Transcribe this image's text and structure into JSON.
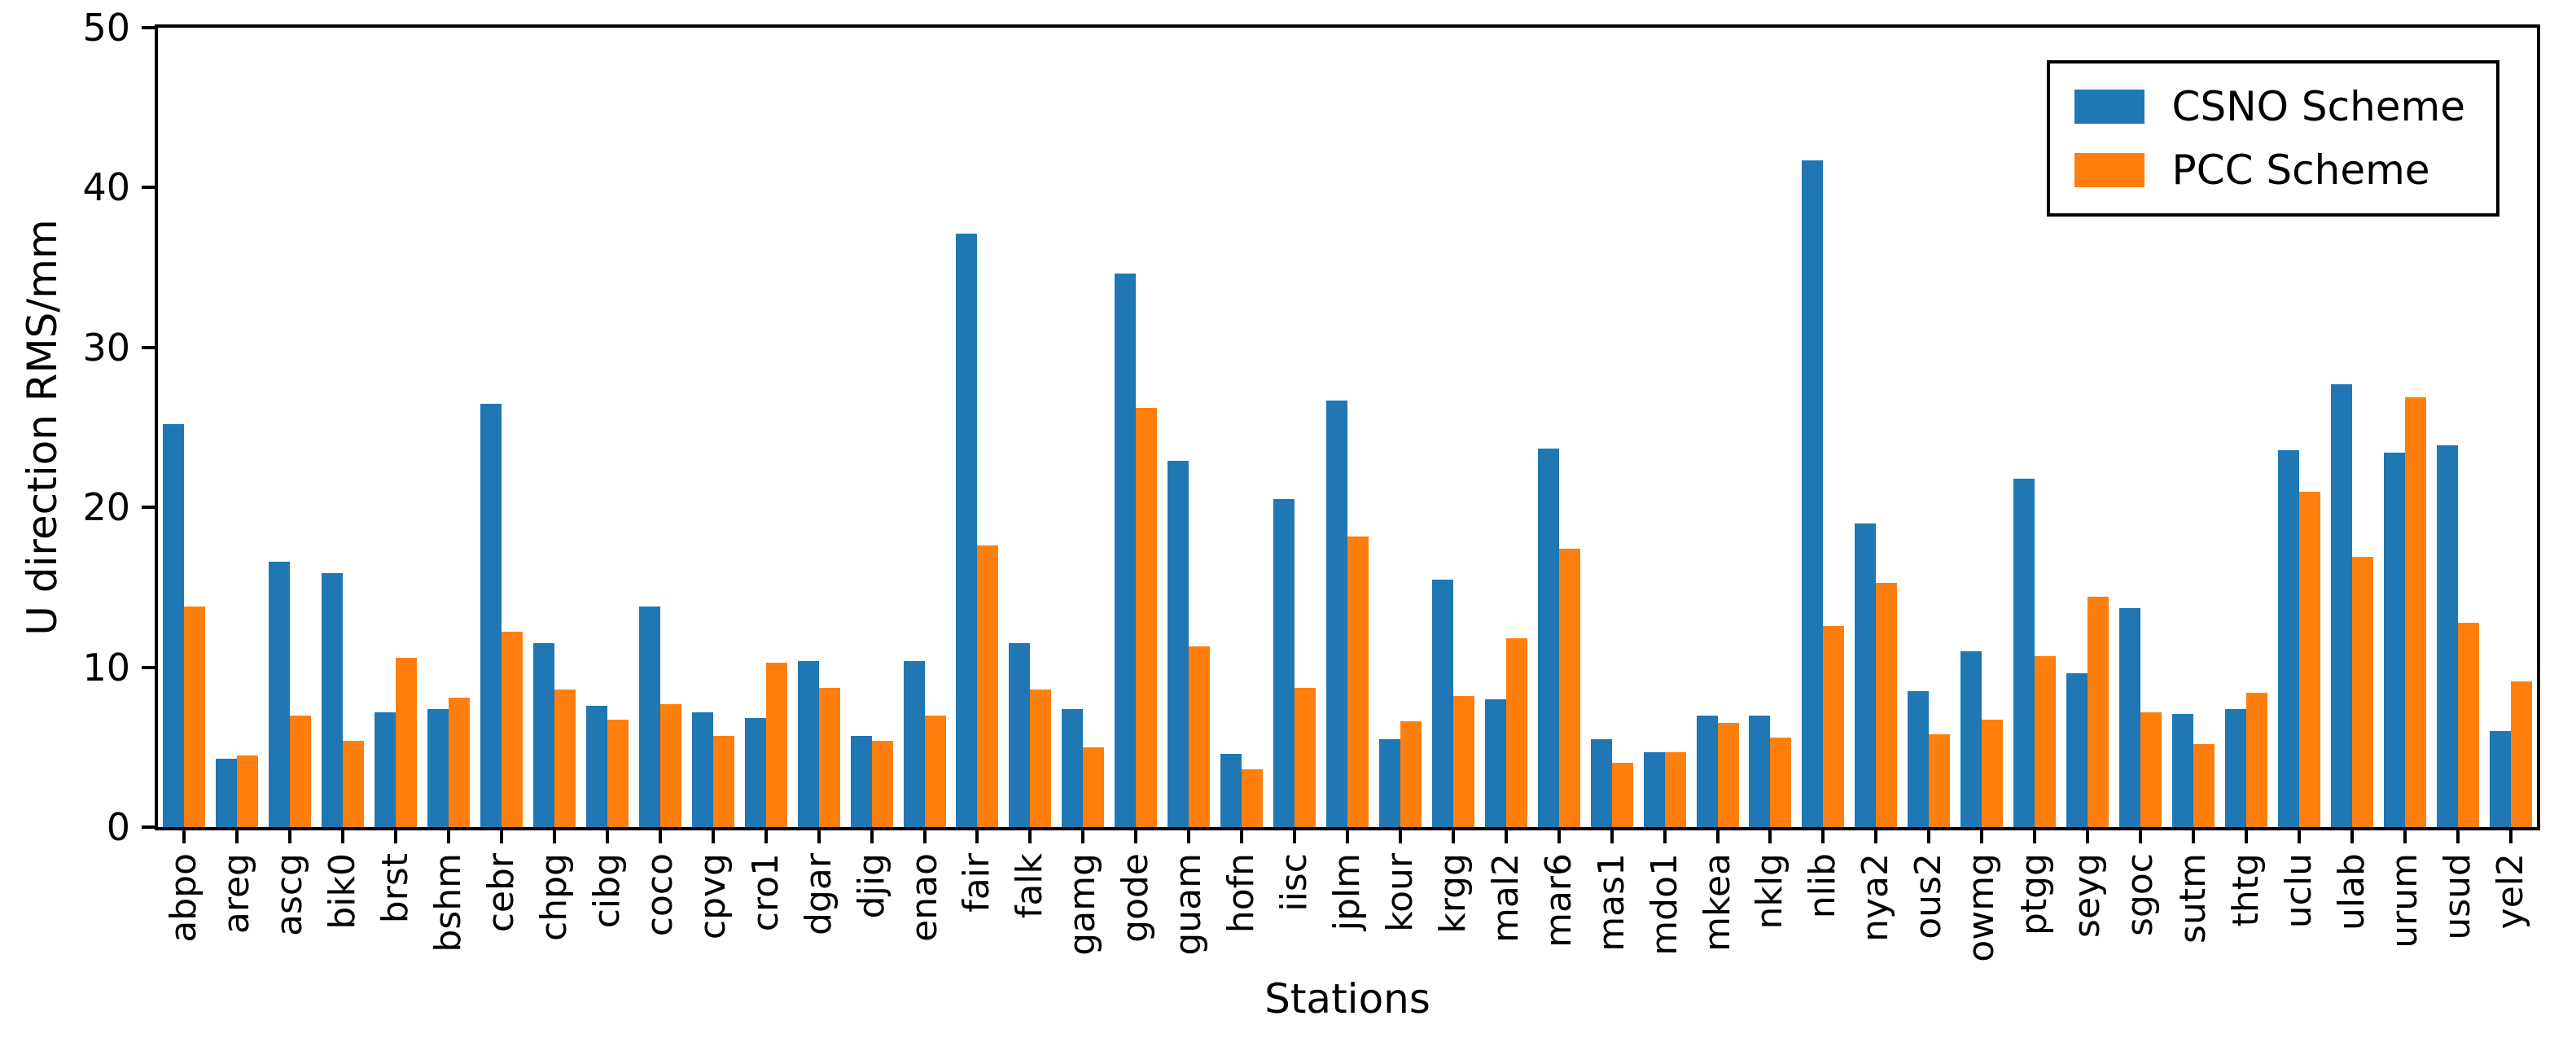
{
  "figure": {
    "background": "#ffffff",
    "text_color": "#000000"
  },
  "chart_data": {
    "type": "bar",
    "title": "",
    "xlabel": "Stations",
    "ylabel": "U direction RMS/mm",
    "ylim": [
      0,
      50
    ],
    "yticks": [
      0,
      10,
      20,
      30,
      40,
      50
    ],
    "grid": false,
    "legend_position": "upper-right",
    "categories": [
      "abpo",
      "areg",
      "ascg",
      "bik0",
      "brst",
      "bshm",
      "cebr",
      "chpg",
      "cibg",
      "coco",
      "cpvg",
      "cro1",
      "dgar",
      "djig",
      "enao",
      "fair",
      "falk",
      "gamg",
      "gode",
      "guam",
      "hofn",
      "iisc",
      "jplm",
      "kour",
      "krgg",
      "mal2",
      "mar6",
      "mas1",
      "mdo1",
      "mkea",
      "nklg",
      "nlib",
      "nya2",
      "ous2",
      "owmg",
      "ptgg",
      "seyg",
      "sgoc",
      "sutm",
      "thtg",
      "uclu",
      "ulab",
      "urum",
      "usud",
      "yel2"
    ],
    "series": [
      {
        "name": "CSNO Scheme",
        "color": "#1f77b4",
        "values": [
          25.2,
          4.3,
          16.6,
          15.9,
          7.2,
          7.4,
          26.5,
          11.5,
          7.6,
          13.8,
          7.2,
          6.8,
          10.4,
          5.7,
          10.4,
          37.1,
          11.5,
          7.4,
          34.6,
          22.9,
          4.6,
          20.5,
          26.7,
          5.5,
          15.5,
          8.0,
          23.7,
          5.5,
          4.7,
          7.0,
          7.0,
          41.7,
          19.0,
          8.5,
          11.0,
          21.8,
          9.6,
          13.7,
          7.1,
          7.4,
          23.6,
          27.7,
          23.4,
          23.9,
          6.0
        ]
      },
      {
        "name": "PCC Scheme",
        "color": "#ff7f0e",
        "values": [
          13.8,
          4.5,
          7.0,
          5.4,
          10.6,
          8.1,
          12.2,
          8.6,
          6.7,
          7.7,
          5.7,
          10.3,
          8.7,
          5.4,
          7.0,
          17.6,
          8.6,
          5.0,
          26.2,
          11.3,
          3.6,
          8.7,
          18.2,
          6.6,
          8.2,
          11.8,
          17.4,
          4.0,
          4.7,
          6.5,
          5.6,
          12.6,
          15.3,
          5.8,
          6.7,
          10.7,
          14.4,
          7.2,
          5.2,
          8.4,
          21.0,
          16.9,
          26.9,
          12.8,
          9.1
        ]
      }
    ]
  }
}
